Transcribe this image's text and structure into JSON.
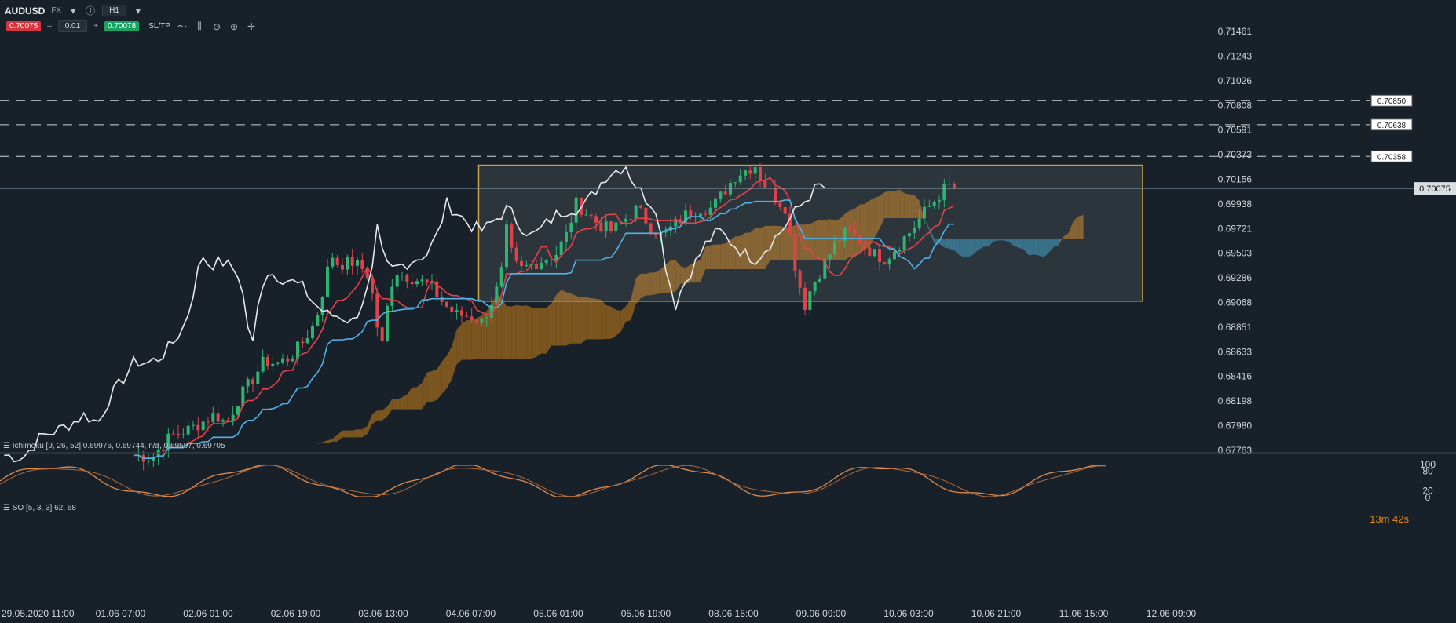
{
  "toolbar": {
    "symbol": "AUDUSD",
    "market": "FX",
    "timeframe": "H1",
    "sell_price": "0.70075",
    "minus": "–",
    "quantity": "0.01",
    "plus": "+",
    "buy_price": "0.70078",
    "sltp_label": "SL/TP",
    "icons": [
      "line-chart-icon",
      "indicator-icon",
      "zoom-out-icon",
      "zoom-in-icon",
      "crosshair-icon"
    ]
  },
  "indicators": {
    "ichimoku_label": "Ichimoku [9, 26, 52] 0.69976, 0.69744, n/a, 0.69597, 0.69705",
    "so_label": "SO [5, 3, 3] 62, 68"
  },
  "timer": "13m 42s",
  "colors": {
    "background": "#182129",
    "bull": "#2db472",
    "bear": "#e0424b",
    "tenkan": "#e2434c",
    "kijun": "#4fb3e8",
    "chikou": "#e6e9ec",
    "cloud_bull": "#8c5e1f",
    "cloud_bear": "#2a6e8e",
    "box_border": "#c9a13a",
    "stoch": "#e08b4f"
  },
  "chart_data": {
    "type": "candlestick",
    "symbol": "AUDUSD",
    "timeframe": "H1",
    "y_ticks": [
      "0.71461",
      "0.71243",
      "0.71026",
      "0.70808",
      "0.70591",
      "0.70373",
      "0.70156",
      "0.69938",
      "0.69721",
      "0.69503",
      "0.69286",
      "0.69068",
      "0.68851",
      "0.68633",
      "0.68416",
      "0.68198",
      "0.67980",
      "0.67763"
    ],
    "ylim": [
      0.67763,
      0.71461
    ],
    "current_price": "0.70075",
    "price_lines": [
      "0.70850",
      "0.70638",
      "0.70358"
    ],
    "x_ticks": [
      "29.05.2020 11:00",
      "01.06 07:00",
      "02.06 01:00",
      "02.06 19:00",
      "03.06 13:00",
      "04.06 07:00",
      "05.06 01:00",
      "05.06 19:00",
      "08.06 15:00",
      "09.06 09:00",
      "10.06 03:00",
      "10.06 21:00",
      "11.06 15:00",
      "12.06 09:00"
    ],
    "range_box": {
      "x_from": "04.06 07:00",
      "x_to": "11.06 15:00",
      "top": 0.7028,
      "bottom": 0.6908
    },
    "close_path": [
      [
        0,
        0.6772
      ],
      [
        6,
        0.677
      ],
      [
        12,
        0.6789
      ],
      [
        18,
        0.6795
      ],
      [
        22,
        0.6801
      ],
      [
        26,
        0.6808
      ],
      [
        30,
        0.68
      ],
      [
        34,
        0.6823
      ],
      [
        38,
        0.6838
      ],
      [
        42,
        0.6855
      ],
      [
        46,
        0.6853
      ],
      [
        50,
        0.6858
      ],
      [
        54,
        0.687
      ],
      [
        58,
        0.6887
      ],
      [
        60,
        0.6905
      ],
      [
        62,
        0.6932
      ],
      [
        64,
        0.6948
      ],
      [
        66,
        0.694
      ],
      [
        70,
        0.6943
      ],
      [
        74,
        0.6936
      ],
      [
        76,
        0.6929
      ],
      [
        78,
        0.689
      ],
      [
        80,
        0.687
      ],
      [
        82,
        0.691
      ],
      [
        84,
        0.6935
      ],
      [
        88,
        0.693
      ],
      [
        92,
        0.6926
      ],
      [
        96,
        0.692
      ],
      [
        100,
        0.6905
      ],
      [
        104,
        0.6896
      ],
      [
        108,
        0.6895
      ],
      [
        112,
        0.689
      ],
      [
        114,
        0.69
      ],
      [
        118,
        0.6925
      ],
      [
        120,
        0.697
      ],
      [
        122,
        0.6945
      ],
      [
        124,
        0.6935
      ],
      [
        128,
        0.694
      ],
      [
        132,
        0.6945
      ],
      [
        136,
        0.695
      ],
      [
        140,
        0.697
      ],
      [
        142,
        0.6995
      ],
      [
        146,
        0.6985
      ],
      [
        150,
        0.6975
      ],
      [
        154,
        0.697
      ],
      [
        158,
        0.698
      ],
      [
        162,
        0.699
      ],
      [
        166,
        0.6975
      ],
      [
        170,
        0.6965
      ],
      [
        174,
        0.6975
      ],
      [
        178,
        0.6985
      ],
      [
        182,
        0.699
      ],
      [
        186,
        0.699
      ],
      [
        190,
        0.7005
      ],
      [
        194,
        0.702
      ],
      [
        198,
        0.7025
      ],
      [
        200,
        0.7028
      ],
      [
        202,
        0.7015
      ],
      [
        206,
        0.7
      ],
      [
        210,
        0.699
      ],
      [
        212,
        0.695
      ],
      [
        214,
        0.6925
      ],
      [
        216,
        0.6905
      ],
      [
        218,
        0.692
      ],
      [
        222,
        0.694
      ],
      [
        226,
        0.696
      ],
      [
        230,
        0.697
      ],
      [
        234,
        0.696
      ],
      [
        238,
        0.695
      ],
      [
        242,
        0.6945
      ],
      [
        246,
        0.6958
      ],
      [
        250,
        0.697
      ],
      [
        254,
        0.6985
      ],
      [
        258,
        0.6998
      ],
      [
        262,
        0.701
      ],
      [
        264,
        0.7008
      ]
    ],
    "so_ylim": [
      0,
      100
    ],
    "so_levels": [
      100,
      80,
      20,
      0
    ]
  }
}
